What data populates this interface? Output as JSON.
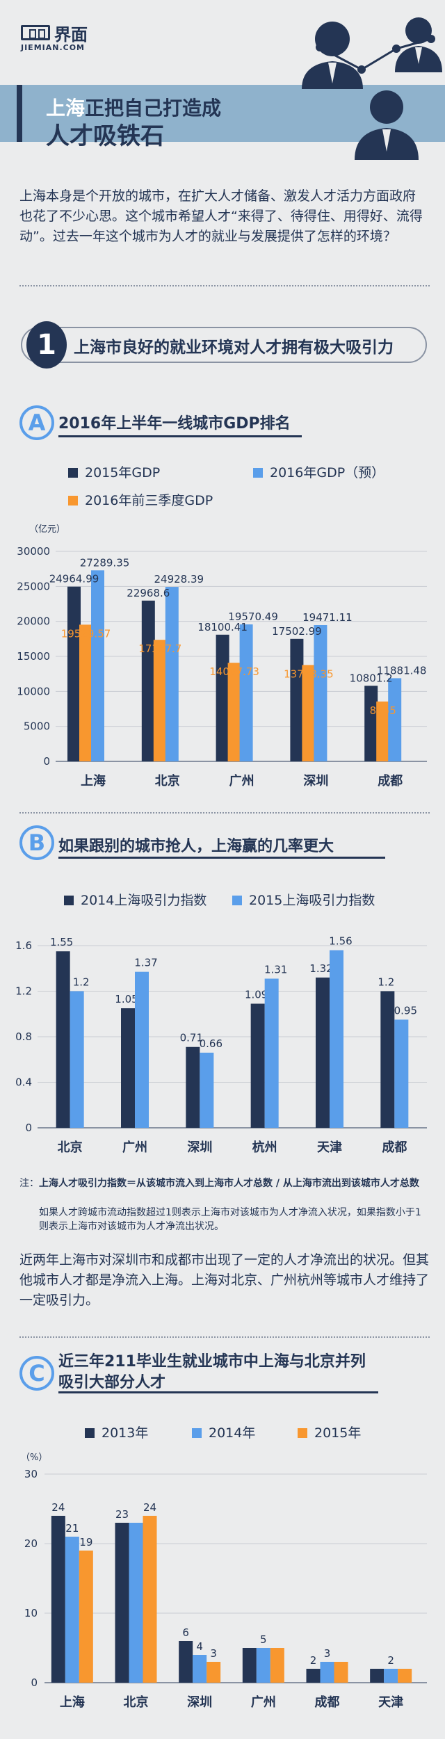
{
  "header": {
    "logo_text": "界面",
    "logo_sub": "JIEMIAN.COM",
    "title_line1_a": "上海",
    "title_line1_b": "正把自己打造成",
    "title_line2": "人才吸铁石"
  },
  "intro": "上海本身是个开放的城市，在扩大人才储备、激发人才活力方面政府也花了不少心思。这个城市希望人才“来得了、待得住、用得好、流得动”。过去一年这个城市为人才的就业与发展提供了怎样的环境？",
  "section1": {
    "number": "1",
    "title": "上海市良好的就业环境对人才拥有极大吸引力"
  },
  "colors": {
    "dark": "#243554",
    "blue": "#5a9eea",
    "orange": "#f8972f",
    "axis": "#8a93a3"
  },
  "chart_a": {
    "letter": "A",
    "title": "2016年上半年一线城市GDP排名",
    "legend": [
      "2015年GDP",
      "2016年GDP（预）",
      "2016年前三季度GDP"
    ]
  },
  "chart_b": {
    "letter": "B",
    "title": "如果跟别的城市抢人，上海赢的几率更大",
    "legend": [
      "2014上海吸引力指数",
      "2015上海吸引力指数"
    ],
    "note_prefix": "注：",
    "note_bold": "上海人才吸引力指数＝从该城市流入到上海市人才总数 / 从上海市流出到该城市人才总数",
    "note_rest": "如果人才跨城市流动指数超过1则表示上海市对该城市为人才净流入状况，如果指数小于1则表示上海市对该城市为人才净流出状况。",
    "paragraph": "近两年上海市对深圳市和成都市出现了一定的人才净流出的状况。但其他城市人才都是净流入上海。上海对北京、广州杭州等城市人才维持了一定吸引力。"
  },
  "chart_c": {
    "letter": "C",
    "title_line1": "近三年211毕业生就业城市中上海与北京并列",
    "title_line2": "吸引大部分人才",
    "legend": [
      "2013年",
      "2014年",
      "2015年"
    ]
  },
  "chart_data": [
    {
      "type": "bar",
      "title": "2016年上半年一线城市GDP排名",
      "ylabel": "（亿元）",
      "ylim": [
        0,
        30000
      ],
      "yticks": [
        0,
        5000,
        10000,
        15000,
        20000,
        25000,
        30000
      ],
      "categories": [
        "上海",
        "北京",
        "广州",
        "深圳",
        "成都"
      ],
      "series": [
        {
          "name": "2015年GDP",
          "values": [
            24964.99,
            22968.6,
            18100.41,
            17502.99,
            10801.2
          ],
          "labels": [
            "24964.99",
            "22968.6",
            "18100.41",
            "17502.99",
            "10801.2"
          ]
        },
        {
          "name": "2016年前三季度GDP",
          "values": [
            19529.57,
            17367.7,
            14087.73,
            13768.35,
            8555
          ],
          "labels": [
            "19529.57",
            "17367.7",
            "14087.73",
            "13768.35",
            "8555"
          ]
        },
        {
          "name": "2016年GDP（预）",
          "values": [
            27289.35,
            24928.39,
            19570.49,
            19471.11,
            11881.48
          ],
          "labels": [
            "27289.35",
            "24928.39",
            "19570.49",
            "19471.11",
            "11881.48"
          ]
        }
      ]
    },
    {
      "type": "bar",
      "title": "如果跟别的城市抢人，上海赢的几率更大",
      "ylim": [
        0,
        1.6
      ],
      "yticks": [
        0,
        0.4,
        0.8,
        1.2,
        1.6
      ],
      "categories": [
        "北京",
        "广州",
        "深圳",
        "杭州",
        "天津",
        "成都"
      ],
      "series": [
        {
          "name": "2014上海吸引力指数",
          "values": [
            1.55,
            1.05,
            0.71,
            1.09,
            1.32,
            1.2
          ]
        },
        {
          "name": "2015上海吸引力指数",
          "values": [
            1.2,
            1.37,
            0.66,
            1.31,
            1.56,
            0.95
          ]
        }
      ]
    },
    {
      "type": "bar",
      "title": "近三年211毕业生就业城市中上海与北京并列吸引大部分人才",
      "ylabel": "（%）",
      "ylim": [
        0,
        30
      ],
      "yticks": [
        0,
        10,
        20,
        30
      ],
      "categories": [
        "上海",
        "北京",
        "深圳",
        "广州",
        "成都",
        "天津"
      ],
      "series": [
        {
          "name": "2013年",
          "values": [
            24,
            23,
            6,
            5,
            2,
            2
          ]
        },
        {
          "name": "2014年",
          "values": [
            21,
            23,
            4,
            5,
            3,
            2
          ]
        },
        {
          "name": "2015年",
          "values": [
            19,
            24,
            3,
            5,
            3,
            2
          ]
        }
      ],
      "value_labels": [
        {
          "category": "上海",
          "series": "2013年",
          "text": "24"
        },
        {
          "category": "上海",
          "series": "2014年",
          "text": "21"
        },
        {
          "category": "上海",
          "series": "2015年",
          "text": "19"
        },
        {
          "category": "北京",
          "series": "2013年",
          "text": "23"
        },
        {
          "category": "北京",
          "series": "2015年",
          "text": "24"
        },
        {
          "category": "深圳",
          "series": "2013年",
          "text": "6"
        },
        {
          "category": "深圳",
          "series": "2014年",
          "text": "4"
        },
        {
          "category": "深圳",
          "series": "2015年",
          "text": "3"
        },
        {
          "category": "广州",
          "series": "2014年",
          "text": "5"
        },
        {
          "category": "成都",
          "series": "2013年",
          "text": "2"
        },
        {
          "category": "成都",
          "series": "2014年",
          "text": "3"
        },
        {
          "category": "天津",
          "series": "2014年",
          "text": "2"
        }
      ]
    }
  ]
}
